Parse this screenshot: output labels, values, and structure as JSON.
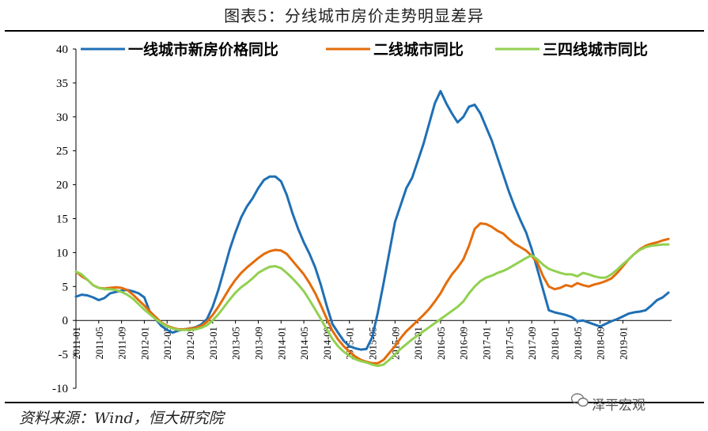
{
  "title": "图表5：分线城市房价走势明显差异",
  "source": "资料来源：Wind，恒大研究院",
  "watermark": "泽平宏观",
  "chart_data": {
    "type": "line",
    "ylim": [
      -10,
      40
    ],
    "yticks": [
      -10,
      -5,
      0,
      5,
      10,
      15,
      20,
      25,
      30,
      35,
      40
    ],
    "xtick_labels": [
      "2011-01",
      "2011-05",
      "2011-09",
      "2012-01",
      "2012-05",
      "2012-09",
      "2013-01",
      "2013-05",
      "2013-09",
      "2014-01",
      "2014-05",
      "2014-09",
      "2015-01",
      "2015-05",
      "2015-09",
      "2016-01",
      "2016-05",
      "2016-09",
      "2017-01",
      "2017-05",
      "2017-09",
      "2018-01",
      "2018-05",
      "2018-09",
      "2019-01"
    ],
    "legend_position": "top",
    "series": [
      {
        "name": "一线城市新房价格同比",
        "color": "#1f6fb4",
        "values": [
          3.5,
          3.8,
          3.7,
          3.4,
          3.0,
          3.3,
          4.0,
          4.2,
          4.4,
          4.5,
          4.3,
          4.0,
          3.4,
          1.2,
          0.2,
          -0.8,
          -1.4,
          -1.8,
          -1.5,
          -1.3,
          -1.2,
          -1.0,
          -0.6,
          0.2,
          2.0,
          4.5,
          7.5,
          10.5,
          13.0,
          15.2,
          16.8,
          18.0,
          19.5,
          20.7,
          21.2,
          21.2,
          20.5,
          18.5,
          15.8,
          13.5,
          11.5,
          9.8,
          7.8,
          5.2,
          2.2,
          -0.5,
          -1.8,
          -3.0,
          -3.8,
          -4.1,
          -4.3,
          -4.2,
          -2.5,
          1.2,
          5.5,
          10.0,
          14.5,
          17.0,
          19.5,
          21.0,
          23.5,
          26.0,
          29.0,
          32.0,
          33.8,
          32.0,
          30.5,
          29.2,
          30.0,
          31.5,
          31.8,
          30.5,
          28.5,
          26.5,
          24.0,
          21.5,
          19.0,
          16.8,
          14.8,
          13.0,
          10.5,
          7.5,
          4.5,
          1.5,
          1.2,
          1.0,
          0.8,
          0.5,
          -0.1,
          0.0,
          -0.3,
          -0.6,
          -0.9,
          -0.5,
          -0.1,
          0.2,
          0.6,
          1.0,
          1.2,
          1.3,
          1.5,
          2.2,
          3.0,
          3.4,
          4.1
        ]
      },
      {
        "name": "二线城市同比",
        "color": "#e46c0a",
        "values": [
          7.2,
          6.5,
          6.0,
          5.2,
          4.8,
          4.7,
          4.8,
          4.9,
          4.8,
          4.5,
          3.8,
          3.0,
          2.2,
          1.3,
          0.5,
          -0.3,
          -0.8,
          -1.1,
          -1.3,
          -1.3,
          -1.2,
          -1.1,
          -0.8,
          -0.2,
          0.8,
          2.0,
          3.4,
          4.8,
          6.0,
          7.0,
          7.8,
          8.5,
          9.2,
          9.8,
          10.2,
          10.4,
          10.3,
          9.8,
          8.8,
          7.8,
          6.8,
          5.5,
          4.0,
          2.2,
          0.3,
          -1.5,
          -2.8,
          -3.8,
          -4.6,
          -5.3,
          -5.8,
          -6.1,
          -6.3,
          -6.3,
          -5.8,
          -4.8,
          -3.8,
          -2.6,
          -1.6,
          -0.8,
          0.0,
          0.8,
          1.7,
          2.8,
          4.0,
          5.5,
          6.8,
          7.8,
          9.0,
          11.0,
          13.5,
          14.3,
          14.2,
          13.8,
          13.2,
          12.8,
          12.0,
          11.3,
          10.8,
          10.3,
          9.5,
          8.5,
          6.5,
          5.0,
          4.6,
          4.8,
          5.2,
          5.0,
          5.5,
          5.2,
          5.0,
          5.3,
          5.5,
          5.8,
          6.2,
          7.0,
          8.0,
          9.0,
          9.8,
          10.5,
          11.0,
          11.3,
          11.5,
          11.8,
          12.0
        ]
      },
      {
        "name": "三四线城市同比",
        "color": "#92d050",
        "values": [
          7.2,
          6.8,
          6.0,
          5.2,
          4.8,
          4.6,
          4.6,
          4.5,
          4.2,
          3.8,
          3.2,
          2.4,
          1.6,
          0.9,
          0.2,
          -0.4,
          -0.9,
          -1.2,
          -1.4,
          -1.4,
          -1.4,
          -1.3,
          -1.1,
          -0.7,
          0.0,
          0.9,
          2.0,
          3.1,
          4.1,
          4.9,
          5.5,
          6.2,
          7.0,
          7.5,
          7.9,
          8.0,
          7.7,
          7.0,
          6.2,
          5.3,
          4.3,
          3.0,
          1.6,
          0.2,
          -1.3,
          -2.7,
          -3.8,
          -4.6,
          -5.2,
          -5.7,
          -6.0,
          -6.2,
          -6.5,
          -6.7,
          -6.5,
          -5.8,
          -5.0,
          -4.2,
          -3.5,
          -2.8,
          -2.2,
          -1.6,
          -1.0,
          -0.4,
          0.2,
          0.8,
          1.4,
          2.0,
          2.8,
          4.0,
          5.0,
          5.8,
          6.3,
          6.6,
          7.0,
          7.3,
          7.7,
          8.2,
          8.7,
          9.2,
          9.6,
          9.0,
          8.2,
          7.6,
          7.3,
          7.0,
          6.8,
          6.8,
          6.5,
          7.0,
          6.8,
          6.5,
          6.3,
          6.3,
          6.8,
          7.5,
          8.3,
          9.0,
          9.8,
          10.4,
          10.8,
          11.0,
          11.1,
          11.2,
          11.2
        ]
      }
    ]
  }
}
